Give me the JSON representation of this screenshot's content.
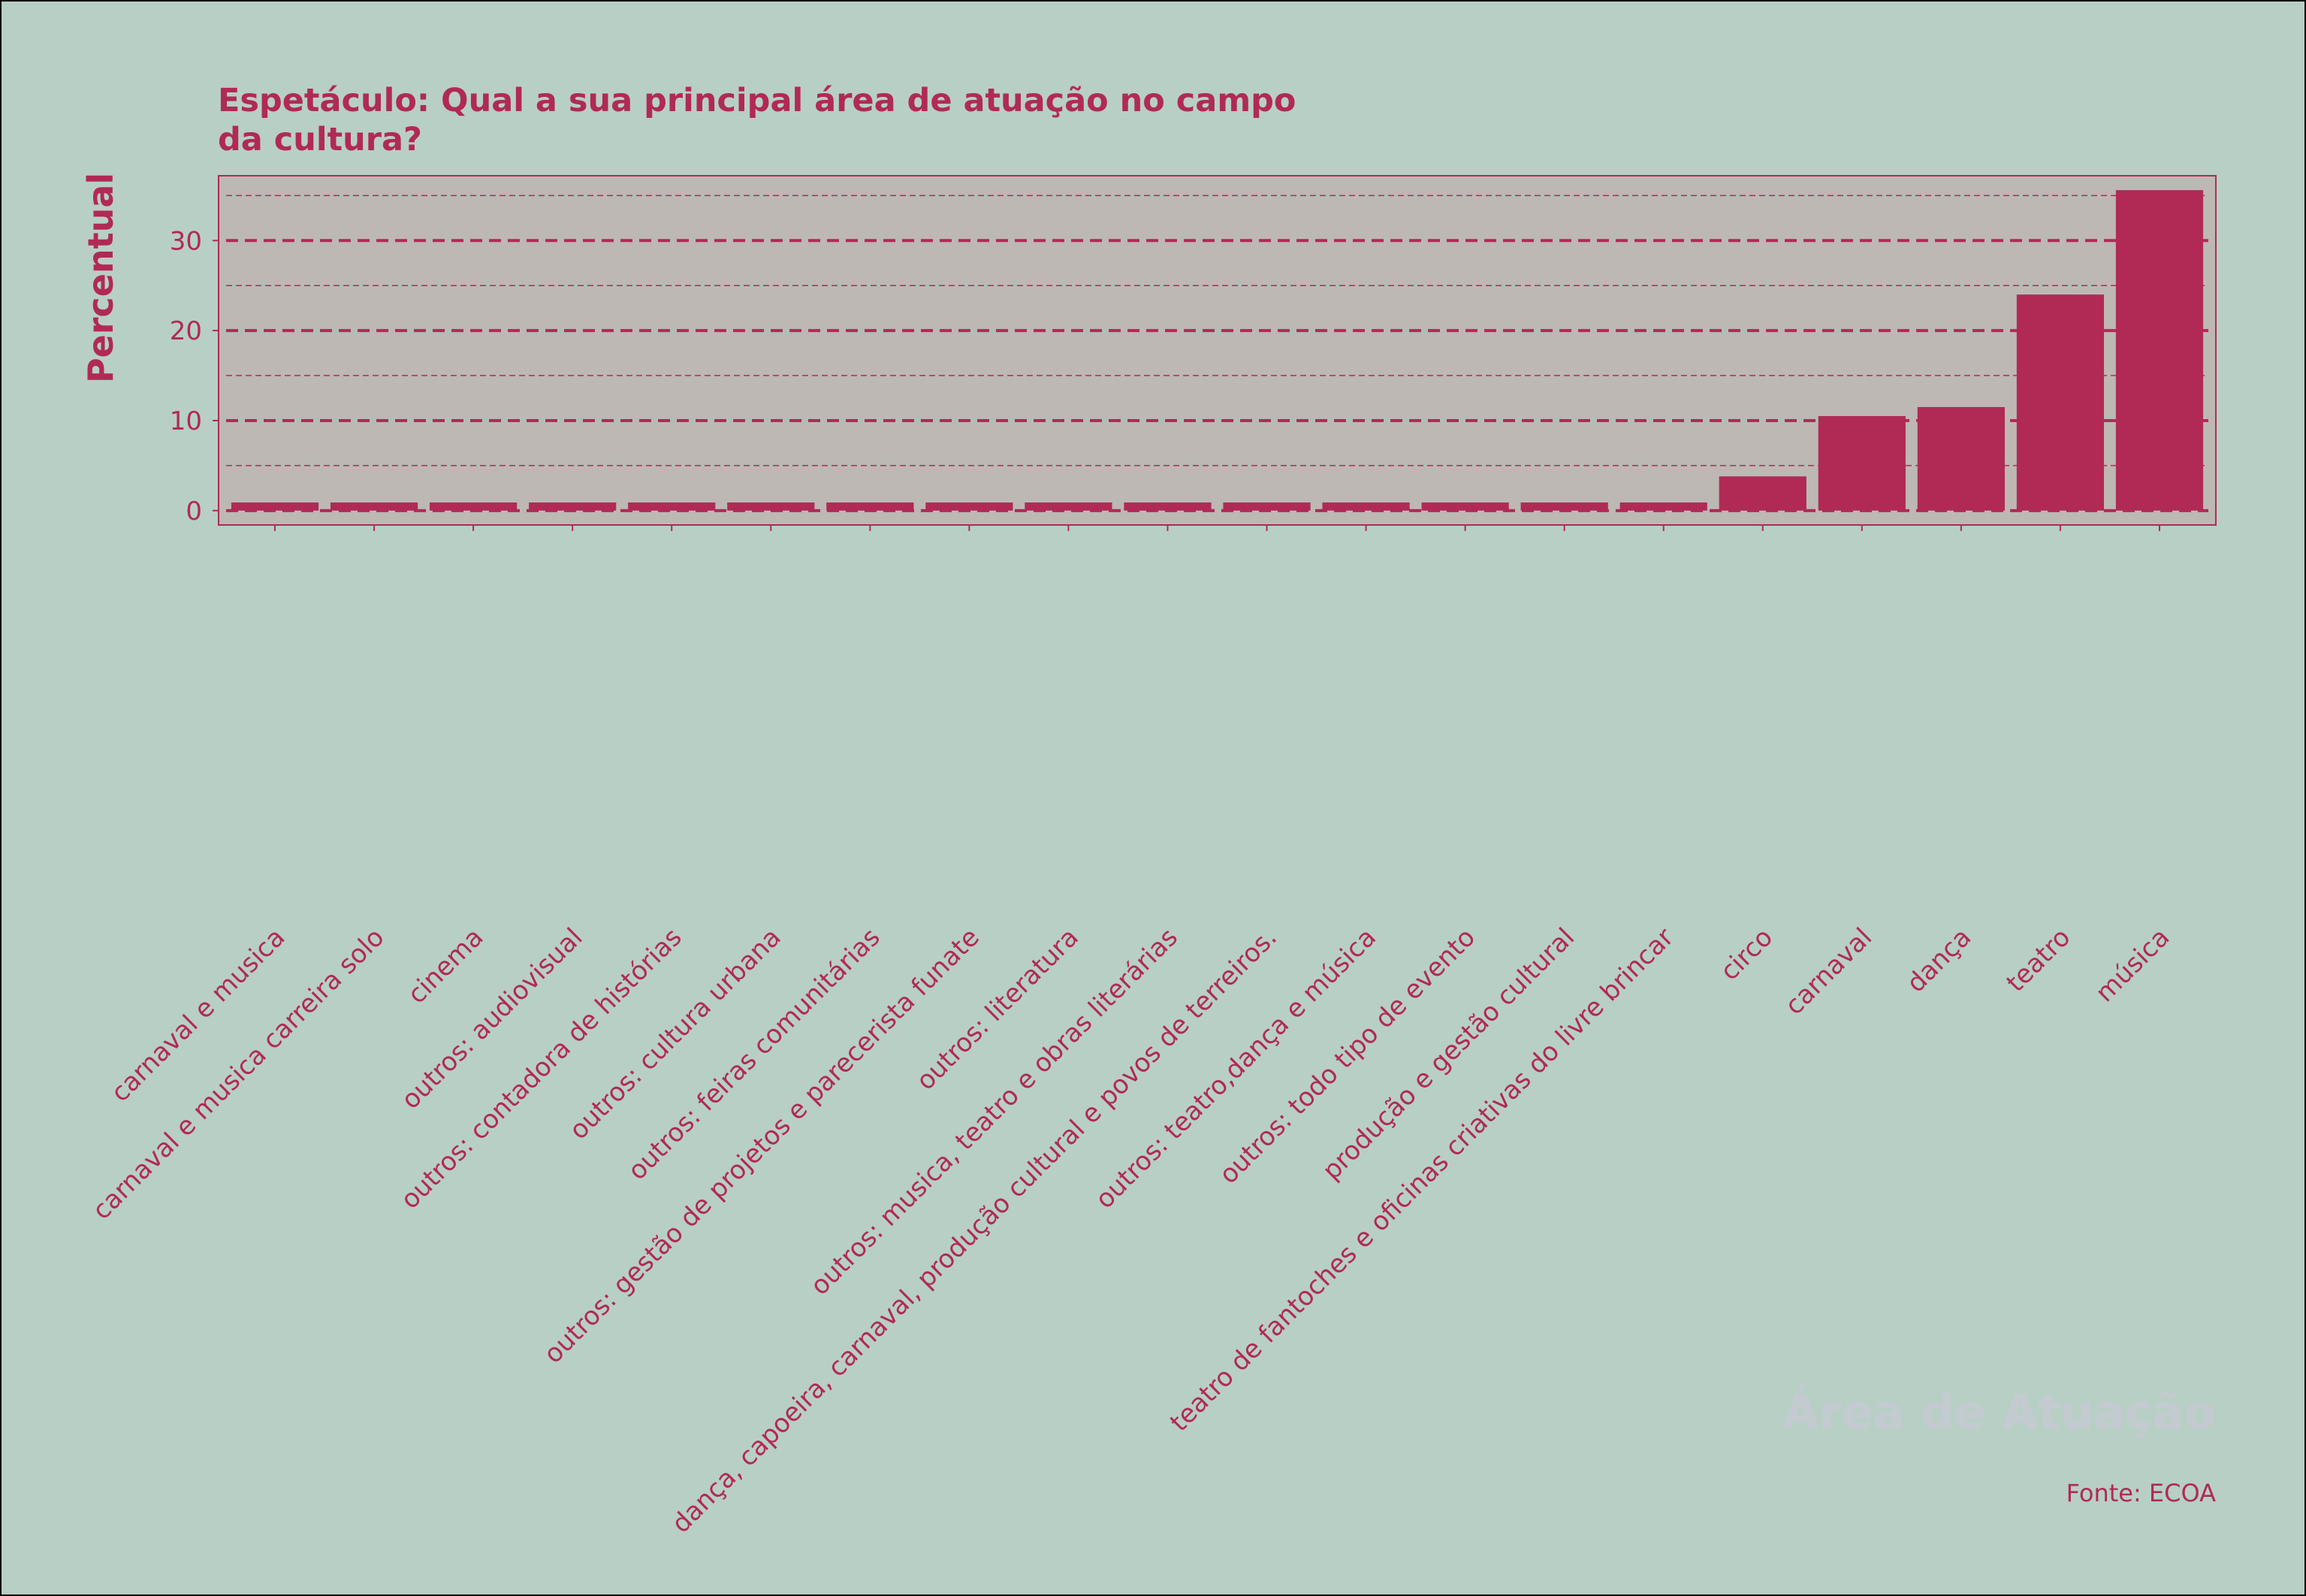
{
  "colors": {
    "background": "#b8cfc5",
    "plot_background": "#bdb8b4",
    "accent": "#b02a55",
    "xlabel_color": "#c4cbd0"
  },
  "chart_data": {
    "type": "bar",
    "title": "Espetáculo: Qual a sua principal área de atuação no campo da cultura?",
    "title_lines": [
      "Espetáculo: Qual a sua principal área de atuação no campo",
      "da cultura?"
    ],
    "ylabel": "Percentual",
    "xlabel": "Área de Atuação",
    "source": "Fonte: ECOA",
    "ylim": [
      -1.6,
      37.2
    ],
    "yticks": [
      0,
      10,
      20,
      30
    ],
    "grid": true,
    "categories": [
      "carnaval e musica",
      "carnaval e musica carreira solo",
      "cinema",
      "outros: audiovisual",
      "outros: contadora de histórias",
      "outros: cultura urbana",
      "outros: feiras comunitárias",
      "outros: gestão de projetos e parecerista funate",
      "outros: literatura",
      "outros: musica, teatro e obras literárias",
      "dança, capoeira, carnaval, produção cultural e povos de terreiros.",
      "outros: teatro,dança e música",
      "outros: todo tipo de evento",
      "produção e gestão cultural",
      "teatro de fantoches e oficinas criativas do livre brincar",
      "circo",
      "carnaval",
      "dança",
      "teatro",
      "música"
    ],
    "values": [
      0.9,
      0.9,
      0.9,
      0.9,
      0.9,
      0.9,
      0.9,
      0.9,
      0.9,
      0.9,
      0.9,
      0.9,
      0.9,
      0.9,
      0.9,
      3.8,
      10.5,
      11.5,
      24.0,
      35.6
    ]
  }
}
